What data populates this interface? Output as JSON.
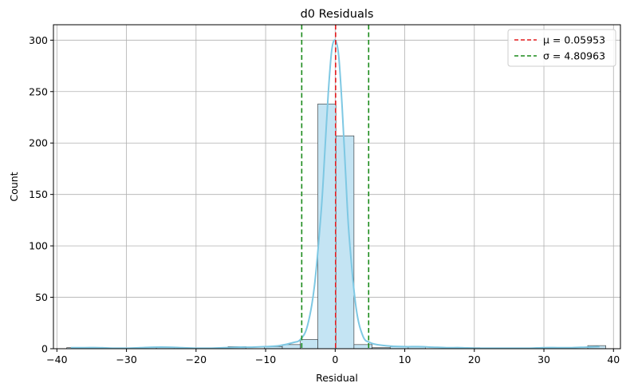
{
  "chart_data": {
    "type": "histogram",
    "title": "d0 Residuals",
    "xlabel": "Residual",
    "ylabel": "Count",
    "xlim": [
      -40.5,
      41
    ],
    "ylim": [
      0,
      315
    ],
    "xticks": [
      -40,
      -30,
      -20,
      -10,
      0,
      10,
      20,
      30,
      40
    ],
    "yticks": [
      0,
      50,
      100,
      150,
      200,
      250,
      300
    ],
    "grid": true,
    "legend_position": "top-right",
    "bin_edges": [
      -38.6,
      -36.0,
      -33.5,
      -30.9,
      -28.3,
      -25.7,
      -23.1,
      -20.5,
      -18.0,
      -15.4,
      -12.8,
      -10.2,
      -7.6,
      -5.0,
      -2.5,
      0.1,
      2.7,
      5.3,
      7.9,
      10.5,
      13.0,
      15.6,
      18.2,
      20.8,
      23.4,
      26.0,
      28.5,
      31.1,
      33.7,
      36.3,
      38.9
    ],
    "counts": [
      1,
      0,
      0,
      0,
      1,
      1,
      0,
      0,
      0,
      2,
      0,
      2,
      4,
      9,
      238,
      207,
      4,
      1,
      2,
      2,
      0,
      0,
      1,
      0,
      0,
      0,
      0,
      0,
      0,
      3
    ],
    "kde": {
      "x": [
        -38,
        -36,
        -34,
        -32,
        -30,
        -28,
        -26,
        -24,
        -22,
        -20,
        -18,
        -16,
        -14,
        -12,
        -10,
        -8,
        -6,
        -5,
        -4,
        -3,
        -2,
        -1.5,
        -1,
        -0.5,
        0,
        0.5,
        1,
        1.5,
        2,
        3,
        4,
        5,
        6,
        8,
        10,
        12,
        14,
        16,
        18,
        20,
        22,
        24,
        26,
        28,
        30,
        32,
        34,
        36,
        38
      ],
      "y": [
        1,
        1,
        1,
        0.5,
        0.5,
        1,
        1.5,
        1.5,
        1,
        0.5,
        0.5,
        1,
        1.5,
        1.5,
        2,
        3,
        6,
        9,
        22,
        60,
        135,
        190,
        248,
        290,
        300,
        285,
        235,
        170,
        110,
        40,
        12,
        6,
        4,
        2.5,
        2,
        2,
        1.5,
        1,
        1,
        0.5,
        0.5,
        0.5,
        0.5,
        0.5,
        1,
        1,
        1,
        1.5,
        2
      ]
    },
    "vlines": [
      {
        "x": 0.05953,
        "color": "#e41a1c",
        "style": "dashed"
      },
      {
        "x": -4.80963,
        "color": "#1a8a1a",
        "style": "dashed"
      },
      {
        "x": 4.80963,
        "color": "#1a8a1a",
        "style": "dashed"
      }
    ],
    "legend": [
      {
        "label": "μ = 0.05953",
        "color": "#e41a1c"
      },
      {
        "label": "σ = 4.80963",
        "color": "#1a8a1a"
      }
    ],
    "bar_fill": "#c4e4f3",
    "bar_stroke": "#2b2b2b",
    "kde_color": "#7ec8e3"
  }
}
